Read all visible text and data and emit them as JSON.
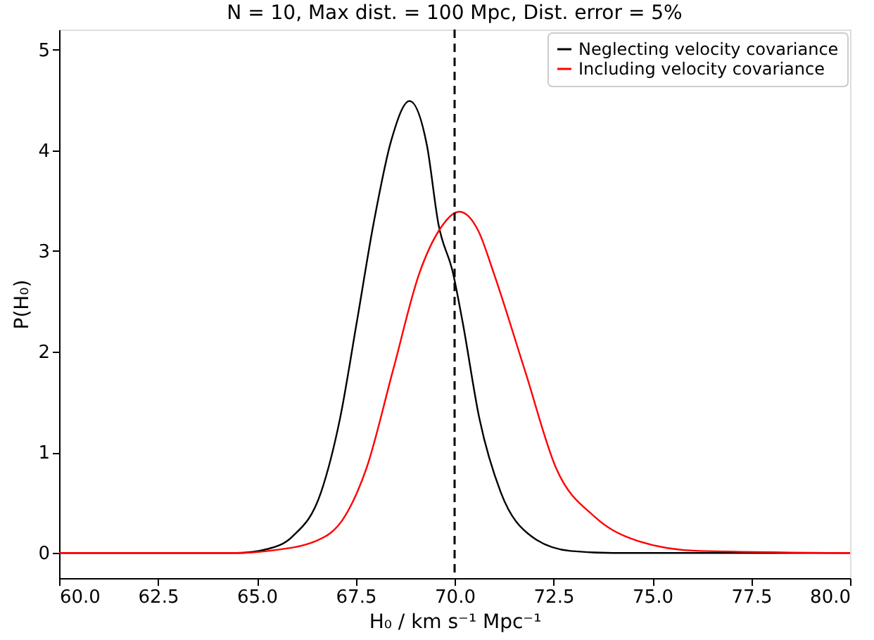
{
  "chart_data": {
    "type": "line",
    "title": "N = 10, Max dist. = 100 Mpc, Dist. error = 5%",
    "xlabel": "H₀ / km s⁻¹ Mpc⁻¹",
    "ylabel": "P(H₀)",
    "series": [
      {
        "name": "Neglecting velocity covariance",
        "color": "#000000",
        "x": [
          60,
          64.5,
          65.28,
          65.89,
          66.62,
          67.1,
          67.53,
          67.95,
          68.4,
          68.86,
          69.3,
          69.59,
          69.96,
          70.2,
          70.63,
          71.17,
          71.96,
          72.93,
          74,
          80
        ],
        "values": [
          0,
          0,
          0.04,
          0.16,
          0.6,
          1.33,
          2.3,
          3.27,
          4.1,
          4.49,
          4.05,
          3.27,
          2.78,
          2.3,
          1.33,
          0.6,
          0.16,
          0.02,
          0,
          0
        ]
      },
      {
        "name": "Including velocity covariance",
        "color": "#ff0000",
        "x": [
          60,
          64.5,
          65.28,
          66.5,
          67.22,
          67.77,
          68.44,
          69.11,
          69.6,
          70.12,
          70.6,
          70.99,
          71.78,
          72.57,
          73.54,
          74.63,
          76.2,
          80
        ],
        "values": [
          0,
          0,
          0.02,
          0.12,
          0.36,
          0.84,
          1.81,
          2.78,
          3.2,
          3.39,
          3.2,
          2.78,
          1.81,
          0.84,
          0.36,
          0.12,
          0.02,
          0
        ]
      }
    ],
    "xlim": [
      60,
      80
    ],
    "ylim": [
      -0.25,
      5.2
    ],
    "xticks": [
      {
        "value": 60,
        "label": "60.0"
      },
      {
        "value": 62.5,
        "label": "62.5"
      },
      {
        "value": 65,
        "label": "65.0"
      },
      {
        "value": 67.5,
        "label": "67.5"
      },
      {
        "value": 70,
        "label": "70.0"
      },
      {
        "value": 72.5,
        "label": "72.5"
      },
      {
        "value": 75,
        "label": "75.0"
      },
      {
        "value": 77.5,
        "label": "77.5"
      },
      {
        "value": 80,
        "label": "80.0"
      }
    ],
    "yticks": [
      0,
      1,
      2,
      3,
      4,
      5
    ],
    "ref_lines": [
      {
        "axis": "x",
        "value": 70,
        "color": "#000000",
        "line_style": "dashed"
      }
    ],
    "grid": false,
    "legend": "top right",
    "line_style": "solid",
    "marker": "none"
  }
}
